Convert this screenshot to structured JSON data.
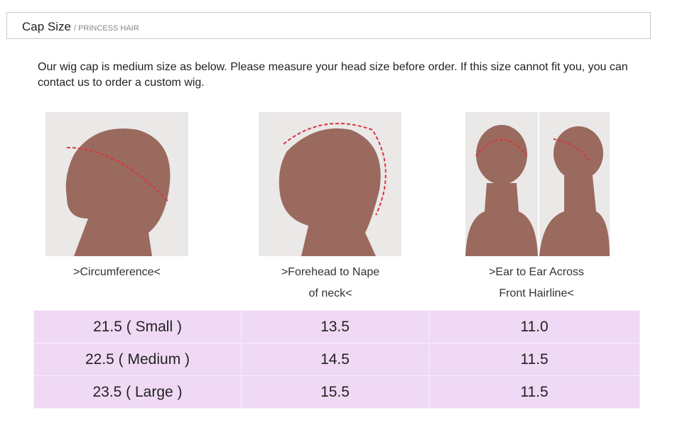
{
  "header": {
    "title": "Cap Size",
    "subtitle": "/ PRINCESS HAIR"
  },
  "intro": "Our wig cap is medium size as below. Please measure your head size before order. If this size cannot fit you, you can contact us to order a custom wig.",
  "measurements": [
    {
      "caption_line1": ">Circumference<",
      "caption_line2": ""
    },
    {
      "caption_line1": ">Forehead to Nape",
      "caption_line2": "of neck<"
    },
    {
      "caption_line1": ">Ear to Ear Across",
      "caption_line2": "Front Hairline<"
    }
  ],
  "table": {
    "rows": [
      [
        "21.5 ( Small )",
        "13.5",
        "11.0"
      ],
      [
        "22.5 ( Medium )",
        "14.5",
        "11.5"
      ],
      [
        "23.5 ( Large )",
        "15.5",
        "11.5"
      ]
    ]
  },
  "colors": {
    "table_bg": "#f0d9f5",
    "dash": "#d9363e",
    "skin": "#9a6a5e"
  }
}
